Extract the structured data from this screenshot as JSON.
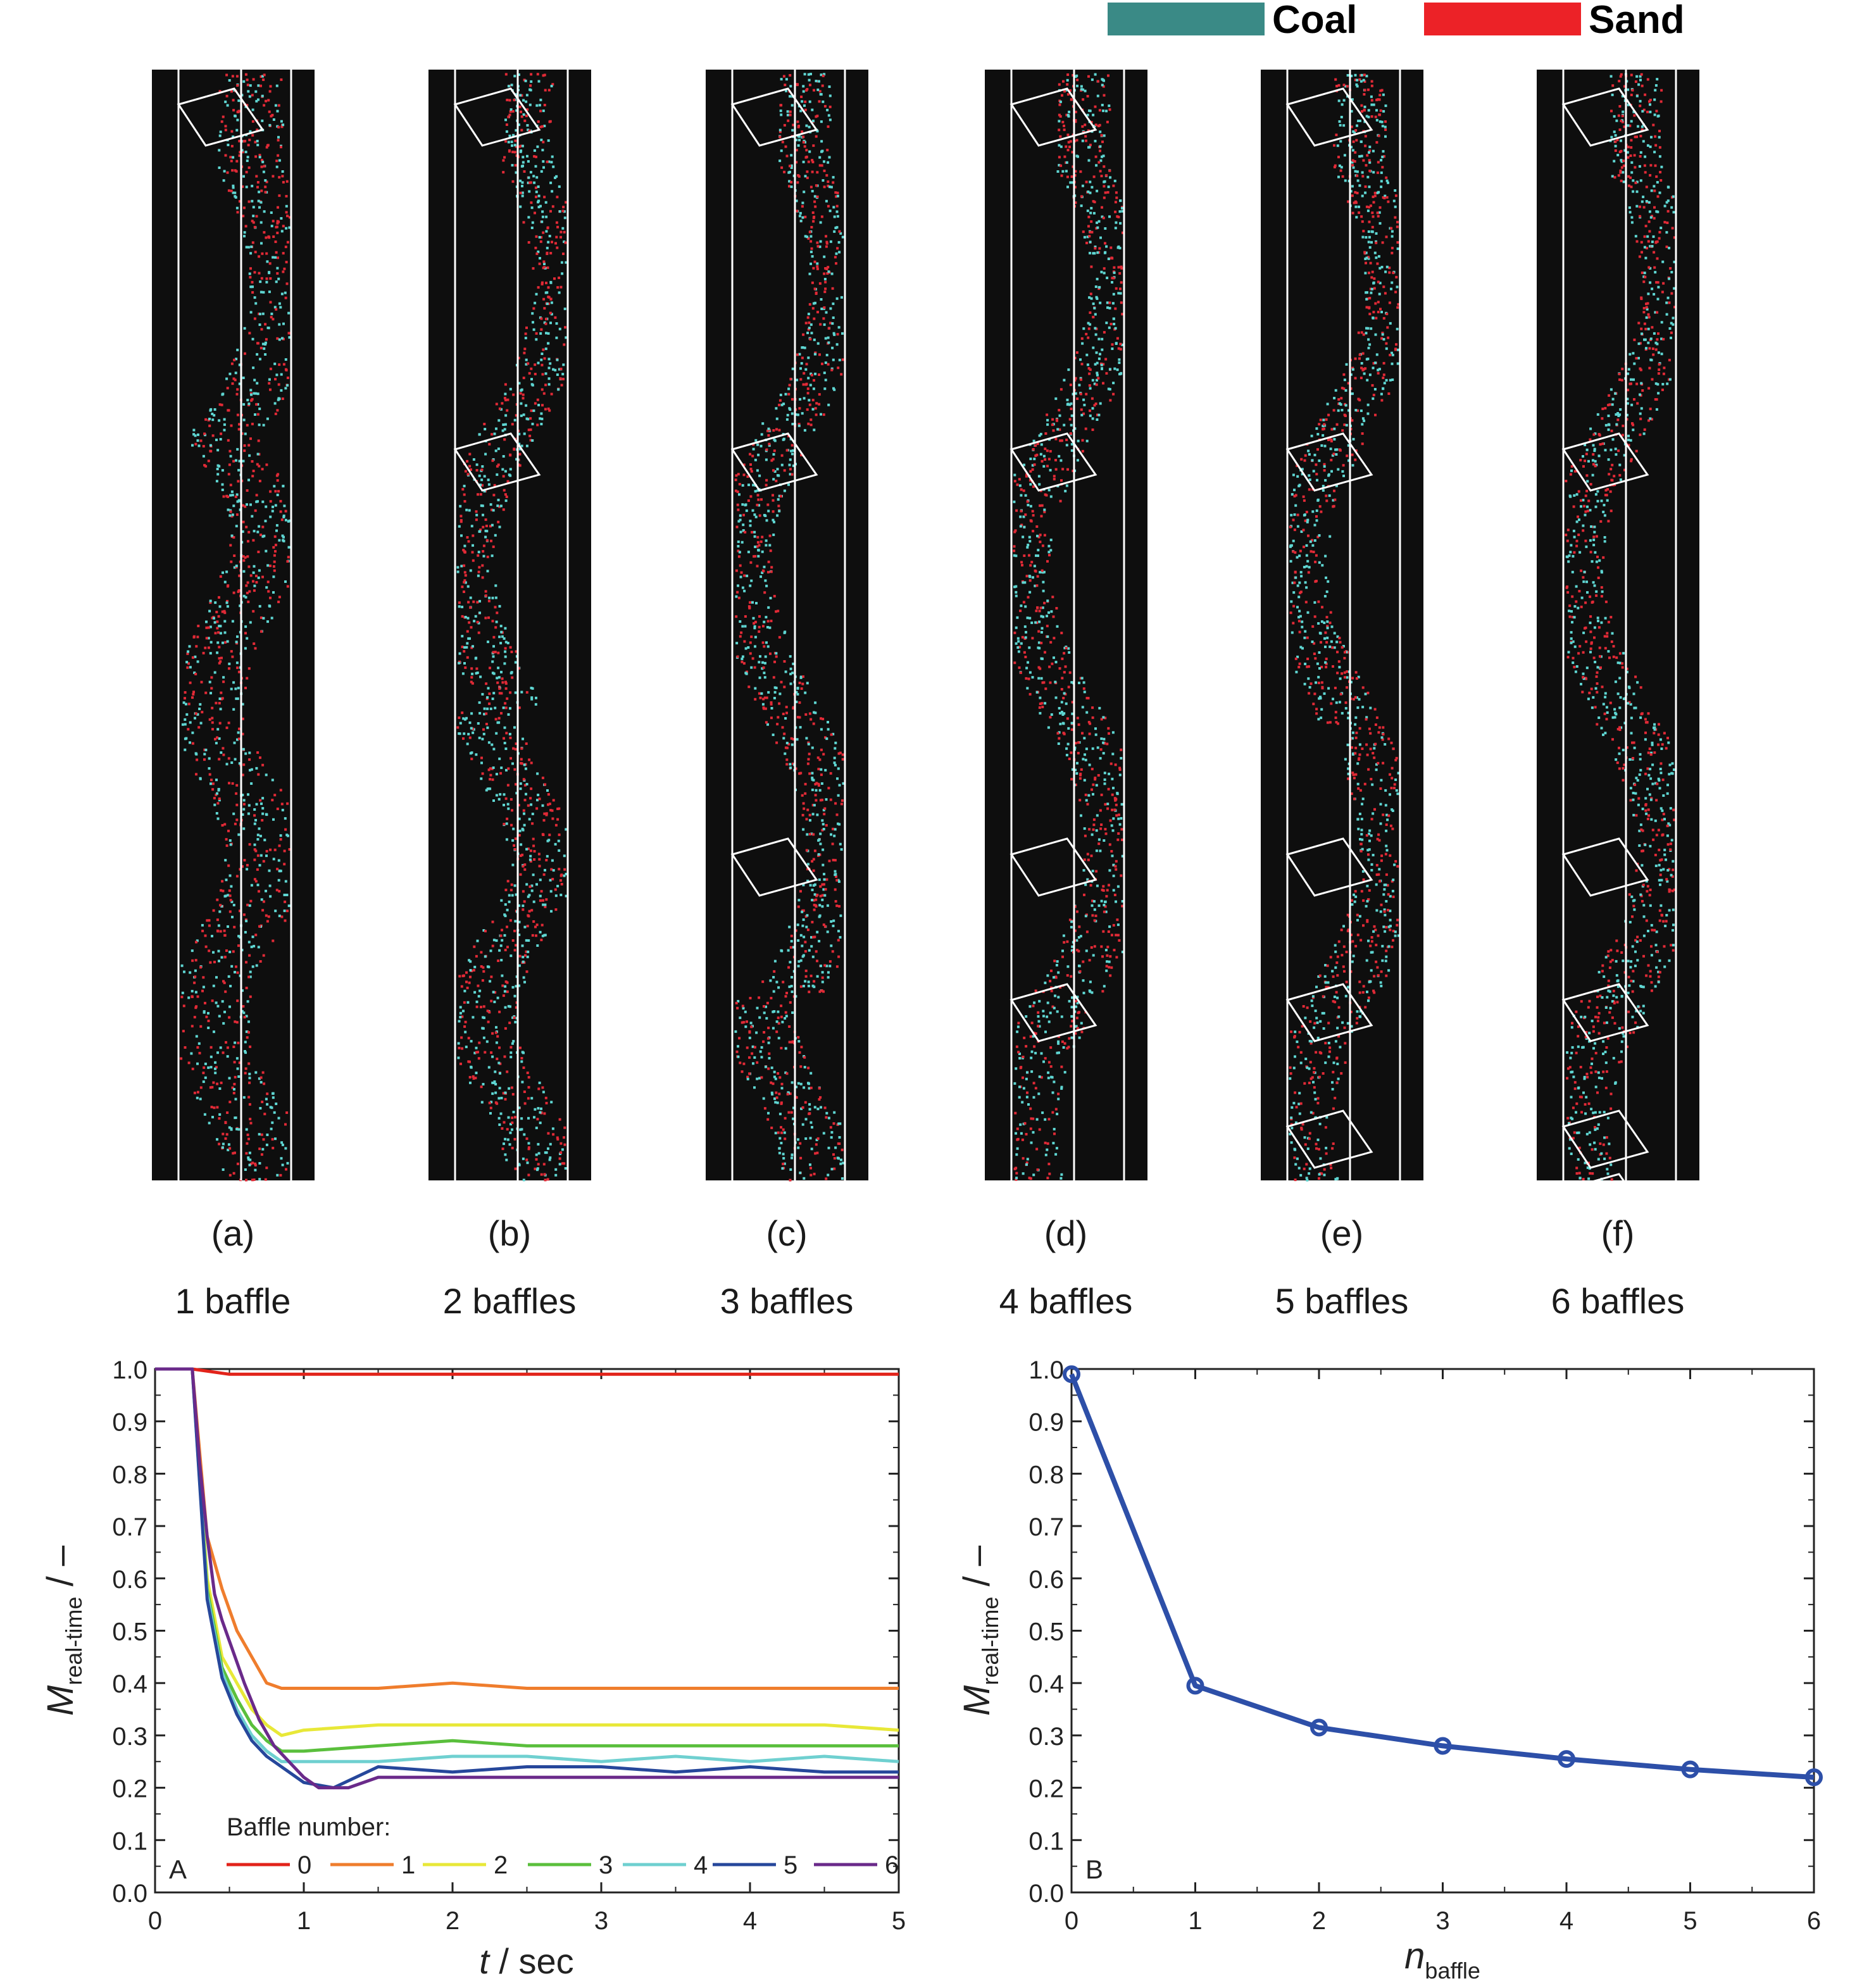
{
  "legend_top": {
    "items": [
      {
        "label": "Coal",
        "color": "#3a8a86"
      },
      {
        "label": "Sand",
        "color": "#ec2227"
      }
    ]
  },
  "panels": [
    {
      "letter": "(a)",
      "caption": "1 baffle",
      "baffles": 1
    },
    {
      "letter": "(b)",
      "caption": "2 baffles",
      "baffles": 2
    },
    {
      "letter": "(c)",
      "caption": "3 baffles",
      "baffles": 3
    },
    {
      "letter": "(d)",
      "caption": "4 baffles",
      "baffles": 4
    },
    {
      "letter": "(e)",
      "caption": "5 baffles",
      "baffles": 5
    },
    {
      "letter": "(f)",
      "caption": "6 baffles",
      "baffles": 6
    }
  ],
  "chart_data": [
    {
      "type": "line",
      "panel_label": "A",
      "xlabel_italic": "t",
      "xlabel_rest": " / sec",
      "ylabel_main": "M",
      "ylabel_sub": "real-time",
      "ylabel_unit": " / –",
      "xlim": [
        0,
        5
      ],
      "ylim": [
        0,
        1.0
      ],
      "xticks": [
        "0",
        "1",
        "2",
        "3",
        "4",
        "5"
      ],
      "yticks": [
        "0.0",
        "0.1",
        "0.2",
        "0.3",
        "0.4",
        "0.5",
        "0.6",
        "0.7",
        "0.8",
        "0.9",
        "1.0"
      ],
      "legend_title": "Baffle number:",
      "legend_position": "bottom",
      "series": [
        {
          "name": "0",
          "color": "#e2231a",
          "x": [
            0,
            0.25,
            0.5,
            1,
            1.5,
            2,
            2.5,
            3,
            3.5,
            4,
            4.5,
            5
          ],
          "values": [
            1.0,
            1.0,
            0.99,
            0.99,
            0.99,
            0.99,
            0.99,
            0.99,
            0.99,
            0.99,
            0.99,
            0.99
          ]
        },
        {
          "name": "1",
          "color": "#ef7d2d",
          "x": [
            0,
            0.25,
            0.35,
            0.45,
            0.55,
            0.65,
            0.75,
            0.85,
            1.0,
            1.5,
            2.0,
            2.5,
            3.0,
            3.5,
            4.0,
            4.5,
            5.0
          ],
          "values": [
            1.0,
            1.0,
            0.68,
            0.58,
            0.5,
            0.45,
            0.4,
            0.39,
            0.39,
            0.39,
            0.4,
            0.39,
            0.39,
            0.39,
            0.39,
            0.39,
            0.39
          ]
        },
        {
          "name": "2",
          "color": "#e8e838",
          "x": [
            0,
            0.25,
            0.35,
            0.45,
            0.55,
            0.65,
            0.75,
            0.85,
            1.0,
            1.5,
            2.0,
            2.5,
            3.0,
            3.5,
            4.0,
            4.5,
            5.0
          ],
          "values": [
            1.0,
            1.0,
            0.6,
            0.45,
            0.4,
            0.35,
            0.32,
            0.3,
            0.31,
            0.32,
            0.32,
            0.32,
            0.32,
            0.32,
            0.32,
            0.32,
            0.31
          ]
        },
        {
          "name": "3",
          "color": "#5abf3c",
          "x": [
            0,
            0.25,
            0.35,
            0.45,
            0.55,
            0.65,
            0.75,
            0.85,
            1.0,
            1.5,
            2.0,
            2.5,
            3.0,
            3.5,
            4.0,
            4.5,
            5.0
          ],
          "values": [
            1.0,
            1.0,
            0.58,
            0.43,
            0.37,
            0.32,
            0.29,
            0.27,
            0.27,
            0.28,
            0.29,
            0.28,
            0.28,
            0.28,
            0.28,
            0.28,
            0.28
          ]
        },
        {
          "name": "4",
          "color": "#6fd0d0",
          "x": [
            0,
            0.25,
            0.35,
            0.45,
            0.55,
            0.65,
            0.75,
            0.85,
            1.0,
            1.5,
            2.0,
            2.5,
            3.0,
            3.5,
            4.0,
            4.5,
            5.0
          ],
          "values": [
            1.0,
            1.0,
            0.57,
            0.42,
            0.35,
            0.3,
            0.27,
            0.25,
            0.25,
            0.25,
            0.26,
            0.26,
            0.25,
            0.26,
            0.25,
            0.26,
            0.25
          ]
        },
        {
          "name": "5",
          "color": "#26479b",
          "x": [
            0,
            0.25,
            0.35,
            0.45,
            0.55,
            0.65,
            0.75,
            0.85,
            1.0,
            1.2,
            1.5,
            2.0,
            2.5,
            3.0,
            3.5,
            4.0,
            4.5,
            5.0
          ],
          "values": [
            1.0,
            1.0,
            0.56,
            0.41,
            0.34,
            0.29,
            0.26,
            0.24,
            0.21,
            0.2,
            0.24,
            0.23,
            0.24,
            0.24,
            0.23,
            0.24,
            0.23,
            0.23
          ]
        },
        {
          "name": "6",
          "color": "#6a2a8a",
          "x": [
            0,
            0.25,
            0.3,
            0.35,
            0.4,
            0.45,
            0.5,
            0.55,
            0.6,
            0.7,
            0.8,
            0.9,
            1.0,
            1.1,
            1.3,
            1.5,
            2.0,
            2.5,
            3.0,
            3.5,
            4.0,
            4.5,
            5.0
          ],
          "values": [
            1.0,
            1.0,
            0.82,
            0.68,
            0.57,
            0.52,
            0.48,
            0.44,
            0.4,
            0.33,
            0.28,
            0.25,
            0.22,
            0.2,
            0.2,
            0.22,
            0.22,
            0.22,
            0.22,
            0.22,
            0.22,
            0.22,
            0.22
          ]
        }
      ]
    },
    {
      "type": "line",
      "panel_label": "B",
      "xlabel_main": "n",
      "xlabel_sub": "baffle",
      "ylabel_main": "M",
      "ylabel_sub": "real-time",
      "ylabel_unit": " / –",
      "xlim": [
        0,
        6
      ],
      "ylim": [
        0,
        1.0
      ],
      "xticks": [
        "0",
        "1",
        "2",
        "3",
        "4",
        "5",
        "6"
      ],
      "yticks": [
        "0.0",
        "0.1",
        "0.2",
        "0.3",
        "0.4",
        "0.5",
        "0.6",
        "0.7",
        "0.8",
        "0.9",
        "1.0"
      ],
      "series": [
        {
          "color": "#2d4fa8",
          "x": [
            0,
            1,
            2,
            3,
            4,
            5,
            6
          ],
          "values": [
            0.99,
            0.395,
            0.315,
            0.28,
            0.255,
            0.235,
            0.22
          ]
        }
      ]
    }
  ]
}
